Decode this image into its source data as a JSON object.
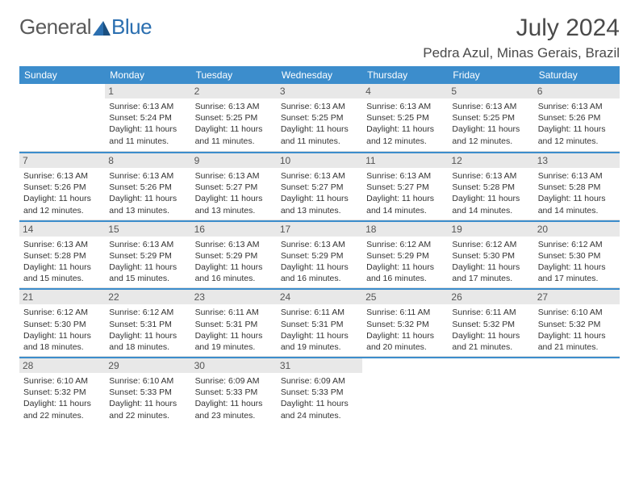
{
  "logo": {
    "part1": "General",
    "part2": "Blue"
  },
  "title": "July 2024",
  "location": "Pedra Azul, Minas Gerais, Brazil",
  "colors": {
    "header_bg": "#3c8dcc",
    "header_text": "#ffffff",
    "daynum_bg": "#e8e8e8",
    "body_text": "#333333",
    "logo_gray": "#5a5a5a",
    "logo_blue": "#2b6fb0",
    "divider": "#3c8dcc"
  },
  "typography": {
    "title_fontsize": 30,
    "location_fontsize": 17,
    "weekday_fontsize": 12,
    "daynum_fontsize": 12,
    "info_fontsize": 10.5
  },
  "weekdays": [
    "Sunday",
    "Monday",
    "Tuesday",
    "Wednesday",
    "Thursday",
    "Friday",
    "Saturday"
  ],
  "weeks": [
    [
      null,
      {
        "n": "1",
        "sr": "Sunrise: 6:13 AM",
        "ss": "Sunset: 5:24 PM",
        "dl": "Daylight: 11 hours and 11 minutes."
      },
      {
        "n": "2",
        "sr": "Sunrise: 6:13 AM",
        "ss": "Sunset: 5:25 PM",
        "dl": "Daylight: 11 hours and 11 minutes."
      },
      {
        "n": "3",
        "sr": "Sunrise: 6:13 AM",
        "ss": "Sunset: 5:25 PM",
        "dl": "Daylight: 11 hours and 11 minutes."
      },
      {
        "n": "4",
        "sr": "Sunrise: 6:13 AM",
        "ss": "Sunset: 5:25 PM",
        "dl": "Daylight: 11 hours and 12 minutes."
      },
      {
        "n": "5",
        "sr": "Sunrise: 6:13 AM",
        "ss": "Sunset: 5:25 PM",
        "dl": "Daylight: 11 hours and 12 minutes."
      },
      {
        "n": "6",
        "sr": "Sunrise: 6:13 AM",
        "ss": "Sunset: 5:26 PM",
        "dl": "Daylight: 11 hours and 12 minutes."
      }
    ],
    [
      {
        "n": "7",
        "sr": "Sunrise: 6:13 AM",
        "ss": "Sunset: 5:26 PM",
        "dl": "Daylight: 11 hours and 12 minutes."
      },
      {
        "n": "8",
        "sr": "Sunrise: 6:13 AM",
        "ss": "Sunset: 5:26 PM",
        "dl": "Daylight: 11 hours and 13 minutes."
      },
      {
        "n": "9",
        "sr": "Sunrise: 6:13 AM",
        "ss": "Sunset: 5:27 PM",
        "dl": "Daylight: 11 hours and 13 minutes."
      },
      {
        "n": "10",
        "sr": "Sunrise: 6:13 AM",
        "ss": "Sunset: 5:27 PM",
        "dl": "Daylight: 11 hours and 13 minutes."
      },
      {
        "n": "11",
        "sr": "Sunrise: 6:13 AM",
        "ss": "Sunset: 5:27 PM",
        "dl": "Daylight: 11 hours and 14 minutes."
      },
      {
        "n": "12",
        "sr": "Sunrise: 6:13 AM",
        "ss": "Sunset: 5:28 PM",
        "dl": "Daylight: 11 hours and 14 minutes."
      },
      {
        "n": "13",
        "sr": "Sunrise: 6:13 AM",
        "ss": "Sunset: 5:28 PM",
        "dl": "Daylight: 11 hours and 14 minutes."
      }
    ],
    [
      {
        "n": "14",
        "sr": "Sunrise: 6:13 AM",
        "ss": "Sunset: 5:28 PM",
        "dl": "Daylight: 11 hours and 15 minutes."
      },
      {
        "n": "15",
        "sr": "Sunrise: 6:13 AM",
        "ss": "Sunset: 5:29 PM",
        "dl": "Daylight: 11 hours and 15 minutes."
      },
      {
        "n": "16",
        "sr": "Sunrise: 6:13 AM",
        "ss": "Sunset: 5:29 PM",
        "dl": "Daylight: 11 hours and 16 minutes."
      },
      {
        "n": "17",
        "sr": "Sunrise: 6:13 AM",
        "ss": "Sunset: 5:29 PM",
        "dl": "Daylight: 11 hours and 16 minutes."
      },
      {
        "n": "18",
        "sr": "Sunrise: 6:12 AM",
        "ss": "Sunset: 5:29 PM",
        "dl": "Daylight: 11 hours and 16 minutes."
      },
      {
        "n": "19",
        "sr": "Sunrise: 6:12 AM",
        "ss": "Sunset: 5:30 PM",
        "dl": "Daylight: 11 hours and 17 minutes."
      },
      {
        "n": "20",
        "sr": "Sunrise: 6:12 AM",
        "ss": "Sunset: 5:30 PM",
        "dl": "Daylight: 11 hours and 17 minutes."
      }
    ],
    [
      {
        "n": "21",
        "sr": "Sunrise: 6:12 AM",
        "ss": "Sunset: 5:30 PM",
        "dl": "Daylight: 11 hours and 18 minutes."
      },
      {
        "n": "22",
        "sr": "Sunrise: 6:12 AM",
        "ss": "Sunset: 5:31 PM",
        "dl": "Daylight: 11 hours and 18 minutes."
      },
      {
        "n": "23",
        "sr": "Sunrise: 6:11 AM",
        "ss": "Sunset: 5:31 PM",
        "dl": "Daylight: 11 hours and 19 minutes."
      },
      {
        "n": "24",
        "sr": "Sunrise: 6:11 AM",
        "ss": "Sunset: 5:31 PM",
        "dl": "Daylight: 11 hours and 19 minutes."
      },
      {
        "n": "25",
        "sr": "Sunrise: 6:11 AM",
        "ss": "Sunset: 5:32 PM",
        "dl": "Daylight: 11 hours and 20 minutes."
      },
      {
        "n": "26",
        "sr": "Sunrise: 6:11 AM",
        "ss": "Sunset: 5:32 PM",
        "dl": "Daylight: 11 hours and 21 minutes."
      },
      {
        "n": "27",
        "sr": "Sunrise: 6:10 AM",
        "ss": "Sunset: 5:32 PM",
        "dl": "Daylight: 11 hours and 21 minutes."
      }
    ],
    [
      {
        "n": "28",
        "sr": "Sunrise: 6:10 AM",
        "ss": "Sunset: 5:32 PM",
        "dl": "Daylight: 11 hours and 22 minutes."
      },
      {
        "n": "29",
        "sr": "Sunrise: 6:10 AM",
        "ss": "Sunset: 5:33 PM",
        "dl": "Daylight: 11 hours and 22 minutes."
      },
      {
        "n": "30",
        "sr": "Sunrise: 6:09 AM",
        "ss": "Sunset: 5:33 PM",
        "dl": "Daylight: 11 hours and 23 minutes."
      },
      {
        "n": "31",
        "sr": "Sunrise: 6:09 AM",
        "ss": "Sunset: 5:33 PM",
        "dl": "Daylight: 11 hours and 24 minutes."
      },
      null,
      null,
      null
    ]
  ]
}
